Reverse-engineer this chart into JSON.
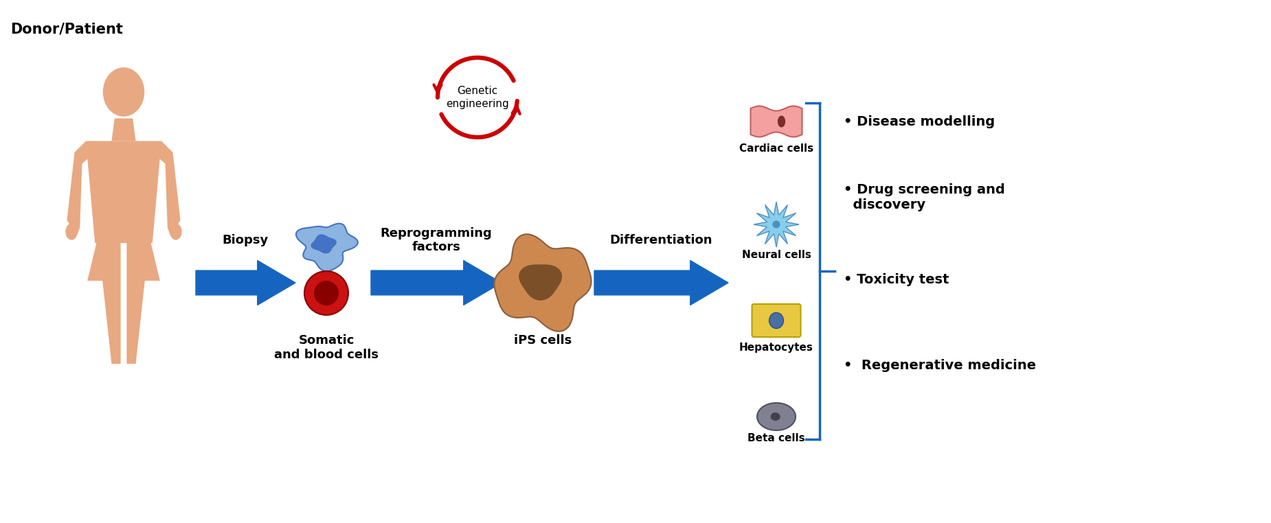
{
  "bg_color": "#ffffff",
  "arrow_color": "#1565C0",
  "red_arrow_color": "#CC0000",
  "text_color": "#000000",
  "human_color": "#E8A882",
  "somatic_cell_color": "#8BB4E0",
  "somatic_cell_dark": "#4472C4",
  "blood_cell_color": "#CC1111",
  "blood_cell_dark": "#880000",
  "ips_cell_color": "#CD8850",
  "ips_nucleus_color": "#7B4F28",
  "cardiac_cell_color": "#F4A0A0",
  "cardiac_nucleus_color": "#7B2D2D",
  "neural_cell_color": "#87CEEB",
  "neural_center_color": "#5090C0",
  "hepatocyte_color": "#E8C840",
  "hepatocyte_nucleus_color": "#4A6FA5",
  "beta_cell_color": "#808090",
  "beta_nucleus_color": "#404050",
  "label_fontsize": 13,
  "title_fontsize": 15,
  "bullet_fontsize": 14,
  "donor_text": "Donor/Patient",
  "biopsy_text": "Biopsy",
  "somatic_text": "Somatic\nand blood cells",
  "reprogramming_text": "Reprogramming\nfactors",
  "genetic_text": "Genetic\nengineering",
  "ips_text": "iPS cells",
  "differentiation_text": "Differentiation",
  "cardiac_text": "Cardiac cells",
  "neural_text": "Neural cells",
  "hepatocyte_text": "Hepatocytes",
  "beta_text": "Beta cells",
  "bullets": [
    "• Disease modelling",
    "• Drug screening and\n  discovery",
    "• Toxicity test",
    "•  Regenerative medicine"
  ]
}
